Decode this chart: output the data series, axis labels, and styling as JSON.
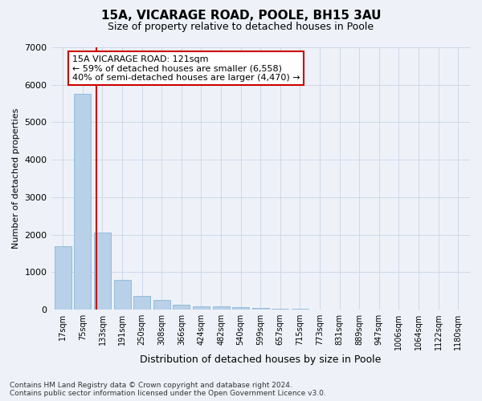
{
  "title": "15A, VICARAGE ROAD, POOLE, BH15 3AU",
  "subtitle": "Size of property relative to detached houses in Poole",
  "xlabel": "Distribution of detached houses by size in Poole",
  "ylabel": "Number of detached properties",
  "footer_line1": "Contains HM Land Registry data © Crown copyright and database right 2024.",
  "footer_line2": "Contains public sector information licensed under the Open Government Licence v3.0.",
  "categories": [
    "17sqm",
    "75sqm",
    "133sqm",
    "191sqm",
    "250sqm",
    "308sqm",
    "366sqm",
    "424sqm",
    "482sqm",
    "540sqm",
    "599sqm",
    "657sqm",
    "715sqm",
    "773sqm",
    "831sqm",
    "889sqm",
    "947sqm",
    "1006sqm",
    "1064sqm",
    "1122sqm",
    "1180sqm"
  ],
  "values": [
    1700,
    5750,
    2050,
    800,
    370,
    250,
    130,
    95,
    80,
    60,
    50,
    30,
    25,
    10,
    8,
    5,
    4,
    3,
    2,
    2,
    1
  ],
  "bar_color": "#b8d0e8",
  "bar_edge_color": "#7aafd4",
  "property_line_x": 1.7,
  "annotation_text": "15A VICARAGE ROAD: 121sqm\n← 59% of detached houses are smaller (6,558)\n40% of semi-detached houses are larger (4,470) →",
  "annotation_box_color": "#ffffff",
  "annotation_box_edge_color": "#cc0000",
  "vline_color": "#cc0000",
  "grid_color": "#cdd8e8",
  "background_color": "#eef2f8",
  "ylim": [
    0,
    7000
  ],
  "yticks": [
    0,
    1000,
    2000,
    3000,
    4000,
    5000,
    6000,
    7000
  ]
}
